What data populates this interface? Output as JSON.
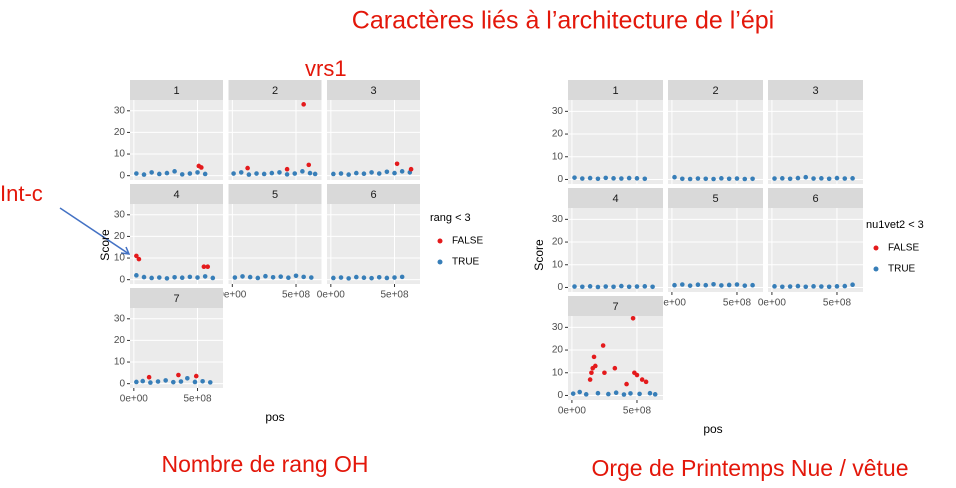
{
  "title": "Caractères liés à l’architecture de l’épi",
  "chart_data": [
    {
      "type": "scatter",
      "caption": "Nombre de rang OH",
      "x_label": "pos",
      "y_label": "Score",
      "legend_title": "rang < 3",
      "annotations": [
        "vrs1",
        "Int-c"
      ],
      "series": [
        {
          "name": "FALSE",
          "color": "#e41a1c"
        },
        {
          "name": "TRUE",
          "color": "#377eb8"
        }
      ],
      "xlim": [
        -30000000,
        700000000
      ],
      "ylim": [
        -2,
        35
      ],
      "xticks": [
        {
          "value": 0,
          "label": "0e+00"
        },
        {
          "value": 500000000,
          "label": "5e+08"
        }
      ],
      "yticks": [
        0,
        10,
        20,
        30
      ],
      "grid": true,
      "facets": [
        {
          "label": "1",
          "series": [
            {
              "x": [
                510000000,
                530000000
              ],
              "values": [
                4.5,
                3.8
              ]
            },
            {
              "x": [
                20000000,
                80000000,
                140000000,
                200000000,
                260000000,
                320000000,
                380000000,
                440000000,
                500000000,
                560000000
              ],
              "values": [
                1,
                0.5,
                1.5,
                0.8,
                1.2,
                2,
                0.6,
                1,
                1.5,
                0.8
              ]
            }
          ]
        },
        {
          "label": "2",
          "series": [
            {
              "x": [
                120000000,
                430000000,
                560000000,
                600000000
              ],
              "values": [
                3.5,
                3,
                33,
                5
              ]
            },
            {
              "x": [
                10000000,
                70000000,
                130000000,
                190000000,
                250000000,
                310000000,
                370000000,
                430000000,
                490000000,
                550000000,
                610000000,
                650000000
              ],
              "values": [
                1,
                1.5,
                0.5,
                1,
                0.8,
                1.2,
                1.5,
                0.6,
                1,
                2,
                1.2,
                0.8
              ]
            }
          ]
        },
        {
          "label": "3",
          "series": [
            {
              "x": [
                520000000,
                630000000
              ],
              "values": [
                5.5,
                3
              ]
            },
            {
              "x": [
                20000000,
                80000000,
                140000000,
                200000000,
                260000000,
                320000000,
                380000000,
                440000000,
                500000000,
                560000000,
                620000000
              ],
              "values": [
                0.8,
                1,
                0.5,
                1.2,
                0.9,
                1.5,
                1,
                1.8,
                1.2,
                2,
                1.5
              ]
            }
          ]
        },
        {
          "label": "4",
          "series": [
            {
              "x": [
                20000000,
                40000000,
                550000000,
                580000000
              ],
              "values": [
                11,
                9.5,
                6,
                6
              ]
            },
            {
              "x": [
                20000000,
                80000000,
                140000000,
                200000000,
                260000000,
                320000000,
                380000000,
                440000000,
                500000000,
                560000000,
                620000000
              ],
              "values": [
                2,
                1.2,
                0.8,
                1,
                0.6,
                1.1,
                0.9,
                1.3,
                1,
                1.5,
                0.8
              ]
            }
          ]
        },
        {
          "label": "5",
          "series": [
            {
              "x": [],
              "values": []
            },
            {
              "x": [
                20000000,
                80000000,
                140000000,
                200000000,
                260000000,
                320000000,
                380000000,
                440000000,
                500000000,
                560000000,
                620000000
              ],
              "values": [
                1,
                1.5,
                1.2,
                0.8,
                1.6,
                1.1,
                1.4,
                0.9,
                1.8,
                1.3,
                1
              ]
            }
          ]
        },
        {
          "label": "6",
          "series": [
            {
              "x": [],
              "values": []
            },
            {
              "x": [
                20000000,
                80000000,
                140000000,
                200000000,
                260000000,
                320000000,
                380000000,
                440000000,
                500000000,
                560000000
              ],
              "values": [
                0.8,
                1,
                0.6,
                1.2,
                0.9,
                0.7,
                1.1,
                0.8,
                1,
                1.3
              ]
            }
          ]
        },
        {
          "label": "7",
          "series": [
            {
              "x": [
                120000000,
                350000000,
                490000000
              ],
              "values": [
                3,
                4,
                3.5
              ]
            },
            {
              "x": [
                20000000,
                70000000,
                130000000,
                190000000,
                250000000,
                310000000,
                370000000,
                420000000,
                480000000,
                540000000,
                600000000
              ],
              "values": [
                0.8,
                1.2,
                0.5,
                1,
                1.5,
                0.7,
                1,
                2.5,
                0.8,
                1.1,
                0.6
              ]
            }
          ]
        }
      ]
    },
    {
      "type": "scatter",
      "caption": "Orge de Printemps Nue / vêtue",
      "x_label": "pos",
      "y_label": "Score",
      "legend_title": "nu1vet2 < 3",
      "series": [
        {
          "name": "FALSE",
          "color": "#e41a1c"
        },
        {
          "name": "TRUE",
          "color": "#377eb8"
        }
      ],
      "xlim": [
        -30000000,
        700000000
      ],
      "ylim": [
        -2,
        35
      ],
      "xticks": [
        {
          "value": 0,
          "label": "0e+00"
        },
        {
          "value": 500000000,
          "label": "5e+08"
        }
      ],
      "yticks": [
        0,
        10,
        20,
        30
      ],
      "grid": true,
      "facets": [
        {
          "label": "1",
          "series": [
            {
              "x": [],
              "values": []
            },
            {
              "x": [
                20000000,
                80000000,
                140000000,
                200000000,
                260000000,
                320000000,
                380000000,
                440000000,
                500000000,
                560000000
              ],
              "values": [
                0.8,
                0.4,
                0.6,
                0.3,
                0.7,
                0.5,
                0.4,
                0.6,
                0.5,
                0.3
              ]
            }
          ]
        },
        {
          "label": "2",
          "series": [
            {
              "x": [],
              "values": []
            },
            {
              "x": [
                20000000,
                80000000,
                140000000,
                200000000,
                260000000,
                320000000,
                380000000,
                440000000,
                500000000,
                560000000,
                620000000
              ],
              "values": [
                1,
                0.3,
                0.2,
                0.4,
                0.3,
                0.2,
                0.5,
                0.3,
                0.4,
                0.2,
                0.3
              ]
            }
          ]
        },
        {
          "label": "3",
          "series": [
            {
              "x": [],
              "values": []
            },
            {
              "x": [
                20000000,
                80000000,
                140000000,
                200000000,
                260000000,
                320000000,
                380000000,
                440000000,
                500000000,
                560000000,
                620000000
              ],
              "values": [
                0.4,
                0.5,
                0.3,
                0.6,
                1,
                0.4,
                0.5,
                0.3,
                0.6,
                0.4,
                0.5
              ]
            }
          ]
        },
        {
          "label": "4",
          "series": [
            {
              "x": [],
              "values": []
            },
            {
              "x": [
                20000000,
                80000000,
                140000000,
                200000000,
                260000000,
                320000000,
                380000000,
                440000000,
                500000000,
                560000000,
                620000000
              ],
              "values": [
                0.4,
                0.3,
                0.5,
                0.2,
                0.4,
                0.3,
                0.6,
                0.3,
                0.4,
                0.5,
                0.3
              ]
            }
          ]
        },
        {
          "label": "5",
          "series": [
            {
              "x": [],
              "values": []
            },
            {
              "x": [
                20000000,
                80000000,
                140000000,
                200000000,
                260000000,
                320000000,
                380000000,
                440000000,
                500000000,
                560000000,
                620000000
              ],
              "values": [
                1,
                1.3,
                0.8,
                1.2,
                1,
                1.4,
                0.9,
                1.1,
                1.3,
                0.8,
                1
              ]
            }
          ]
        },
        {
          "label": "6",
          "series": [
            {
              "x": [],
              "values": []
            },
            {
              "x": [
                20000000,
                80000000,
                140000000,
                200000000,
                260000000,
                320000000,
                380000000,
                440000000,
                500000000,
                560000000,
                620000000
              ],
              "values": [
                0.5,
                0.3,
                0.4,
                0.6,
                0.3,
                0.5,
                0.4,
                0.3,
                0.5,
                0.6,
                1.2
              ]
            }
          ]
        },
        {
          "label": "7",
          "series": [
            {
              "x": [
                140000000,
                150000000,
                160000000,
                170000000,
                180000000,
                240000000,
                250000000,
                330000000,
                420000000,
                470000000,
                480000000,
                500000000,
                540000000,
                570000000
              ],
              "values": [
                7,
                10,
                12,
                17,
                13,
                22,
                10,
                12,
                5,
                34,
                10,
                9,
                7,
                6
              ]
            },
            {
              "x": [
                10000000,
                60000000,
                110000000,
                200000000,
                280000000,
                340000000,
                400000000,
                450000000,
                520000000,
                600000000,
                640000000
              ],
              "values": [
                0.8,
                1.5,
                0.5,
                1,
                0.6,
                1.2,
                0.4,
                0.9,
                0.7,
                1,
                0.5
              ]
            }
          ]
        }
      ]
    }
  ]
}
